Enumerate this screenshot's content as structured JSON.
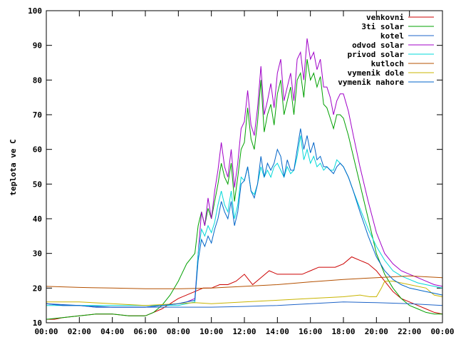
{
  "chart_data": {
    "type": "line",
    "title": "",
    "xlabel": "",
    "ylabel": "teplota ve C",
    "xlim": [
      0,
      24
    ],
    "ylim": [
      10,
      100
    ],
    "yticks": [
      10,
      20,
      30,
      40,
      50,
      60,
      70,
      80,
      90,
      100
    ],
    "xtick_labels": [
      "00:00",
      "02:00",
      "04:00",
      "06:00",
      "08:00",
      "10:00",
      "12:00",
      "14:00",
      "16:00",
      "18:00",
      "20:00",
      "22:00",
      "00:00"
    ],
    "grid": false,
    "legend_position": "top-right",
    "series": [
      {
        "name": "venkovni",
        "color": "#cc0000",
        "x": [
          0,
          0.5,
          1,
          2,
          3,
          4,
          5,
          6,
          7,
          8,
          8.5,
          9,
          9.5,
          10,
          10.5,
          11,
          11.5,
          12,
          12.5,
          13,
          13.5,
          14,
          14.5,
          15,
          15.5,
          16,
          16.5,
          17,
          17.5,
          18,
          18.5,
          19,
          19.5,
          20,
          20.5,
          21,
          21.5,
          22,
          22.5,
          23,
          23.5,
          24
        ],
        "y": [
          11,
          11,
          11.5,
          12,
          12.5,
          12.5,
          12,
          12,
          14,
          17,
          18,
          19,
          20,
          20,
          21,
          21,
          22,
          24,
          21,
          23,
          25,
          24,
          24,
          24,
          24,
          25,
          26,
          26,
          26,
          27,
          29,
          28,
          27,
          25,
          22,
          19,
          17,
          16,
          15,
          14,
          13,
          12.5
        ]
      },
      {
        "name": "3ti solar",
        "color": "#00a000",
        "x": [
          0,
          1,
          2,
          3,
          4,
          5,
          6,
          6.5,
          7,
          7.5,
          8,
          8.5,
          9,
          9.2,
          9.4,
          9.6,
          9.8,
          10,
          10.2,
          10.4,
          10.6,
          10.8,
          11,
          11.2,
          11.4,
          11.6,
          11.8,
          12,
          12.2,
          12.4,
          12.6,
          12.8,
          13,
          13.2,
          13.4,
          13.6,
          13.8,
          14,
          14.2,
          14.4,
          14.6,
          14.8,
          15,
          15.2,
          15.4,
          15.6,
          15.8,
          16,
          16.2,
          16.4,
          16.6,
          16.8,
          17,
          17.2,
          17.4,
          17.6,
          17.8,
          18,
          18.3,
          18.6,
          19,
          19.5,
          20,
          20.5,
          21,
          21.5,
          22,
          22.5,
          23,
          23.5,
          24
        ],
        "y": [
          11,
          11.5,
          12,
          12.5,
          12.5,
          12,
          12,
          13,
          15,
          18,
          22,
          27,
          30,
          38,
          42,
          38,
          43,
          40,
          45,
          50,
          56,
          52,
          50,
          56,
          45,
          52,
          60,
          62,
          72,
          63,
          60,
          68,
          80,
          65,
          70,
          73,
          67,
          76,
          80,
          70,
          74,
          78,
          70,
          80,
          82,
          75,
          86,
          80,
          82,
          78,
          81,
          73,
          72,
          69,
          66,
          70,
          70,
          69,
          64,
          58,
          50,
          40,
          30,
          24,
          20,
          17,
          15,
          14,
          13,
          12.5,
          12.5
        ]
      },
      {
        "name": "kotel",
        "color": "#1e64c8",
        "x": [
          0,
          2,
          4,
          6,
          8,
          10,
          12,
          14,
          16,
          18,
          20,
          22,
          24
        ],
        "y": [
          15.5,
          15,
          14.5,
          14.5,
          14.5,
          14.5,
          14.7,
          15,
          15.5,
          16,
          15.8,
          15.5,
          15
        ]
      },
      {
        "name": "odvod solar",
        "color": "#a000c8",
        "x": [
          0,
          1,
          2,
          3,
          4,
          5,
          6,
          7,
          8,
          8.5,
          9,
          9.2,
          9.4,
          9.6,
          9.8,
          10,
          10.2,
          10.4,
          10.6,
          10.8,
          11,
          11.2,
          11.4,
          11.6,
          11.8,
          12,
          12.2,
          12.4,
          12.6,
          12.8,
          13,
          13.2,
          13.4,
          13.6,
          13.8,
          14,
          14.2,
          14.4,
          14.6,
          14.8,
          15,
          15.2,
          15.4,
          15.6,
          15.8,
          16,
          16.2,
          16.4,
          16.6,
          16.8,
          17,
          17.2,
          17.4,
          17.6,
          17.8,
          18,
          18.3,
          18.6,
          19,
          19.5,
          20,
          20.5,
          21,
          21.5,
          22,
          22.5,
          23,
          23.5,
          24
        ],
        "y": [
          15.5,
          15,
          15,
          14.5,
          14.5,
          14.5,
          14.5,
          15,
          15.5,
          16,
          17,
          30,
          42,
          38,
          46,
          40,
          48,
          54,
          62,
          55,
          52,
          60,
          49,
          56,
          66,
          68,
          77,
          67,
          64,
          72,
          84,
          70,
          74,
          79,
          72,
          82,
          86,
          74,
          78,
          82,
          74,
          86,
          88,
          80,
          92,
          86,
          88,
          83,
          86,
          78,
          78,
          75,
          70,
          74,
          76,
          76,
          71,
          64,
          55,
          45,
          36,
          30,
          27,
          25,
          24,
          23,
          22,
          21,
          20.5
        ]
      },
      {
        "name": "privod solar",
        "color": "#00d8d8",
        "x": [
          0,
          2,
          4,
          6,
          8,
          8.5,
          9,
          9.2,
          9.4,
          9.6,
          9.8,
          10,
          10.2,
          10.4,
          10.6,
          10.8,
          11,
          11.2,
          11.4,
          11.6,
          11.8,
          12,
          12.2,
          12.4,
          12.6,
          12.8,
          13,
          13.2,
          13.4,
          13.6,
          13.8,
          14,
          14.2,
          14.4,
          14.6,
          14.8,
          15,
          15.2,
          15.4,
          15.6,
          15.8,
          16,
          16.2,
          16.4,
          16.6,
          16.8,
          17,
          17.2,
          17.4,
          17.6,
          17.8,
          18,
          18.3,
          18.6,
          19,
          19.5,
          20,
          20.5,
          21,
          21.5,
          22,
          22.5,
          23,
          23.5,
          24
        ],
        "y": [
          15,
          15,
          15,
          15,
          15,
          15.5,
          16,
          30,
          37,
          35,
          38,
          36,
          39,
          44,
          48,
          44,
          42,
          48,
          40,
          44,
          52,
          51,
          55,
          48,
          47,
          50,
          55,
          52,
          54,
          52,
          55,
          56,
          54,
          52,
          55,
          53,
          54,
          58,
          64,
          57,
          60,
          56,
          58,
          55,
          56,
          54,
          55,
          54,
          54,
          57,
          56,
          55,
          52,
          48,
          43,
          37,
          32,
          28,
          25,
          23.5,
          22.5,
          21.5,
          21,
          20.5,
          20
        ]
      },
      {
        "name": "kutloch",
        "color": "#b45000",
        "x": [
          0,
          2,
          4,
          6,
          8,
          10,
          12,
          14,
          16,
          18,
          20,
          22,
          24
        ],
        "y": [
          20.5,
          20.2,
          20,
          19.8,
          19.8,
          20,
          20.5,
          21,
          21.8,
          22.5,
          23,
          23.5,
          23
        ]
      },
      {
        "name": "vymenik dole",
        "color": "#c8b400",
        "x": [
          0,
          2,
          4,
          6,
          8,
          9,
          10,
          12,
          14,
          16,
          18,
          19,
          19.6,
          20,
          20.3,
          20.5,
          21,
          22,
          23,
          23.5,
          24
        ],
        "y": [
          16,
          16,
          15.5,
          15,
          15.5,
          15.8,
          15.5,
          16,
          16.5,
          17,
          17.5,
          18,
          17.5,
          17.5,
          20,
          22,
          22,
          21,
          20,
          18,
          17.5
        ]
      },
      {
        "name": "vymenik nahore",
        "color": "#0064c8",
        "x": [
          0,
          1,
          2,
          3,
          4,
          5,
          6,
          7,
          8,
          8.5,
          9,
          9.2,
          9.4,
          9.6,
          9.8,
          10,
          10.2,
          10.4,
          10.6,
          10.8,
          11,
          11.2,
          11.4,
          11.6,
          11.8,
          12,
          12.2,
          12.4,
          12.6,
          12.8,
          13,
          13.2,
          13.4,
          13.6,
          13.8,
          14,
          14.2,
          14.4,
          14.6,
          14.8,
          15,
          15.2,
          15.4,
          15.6,
          15.8,
          16,
          16.2,
          16.4,
          16.6,
          16.8,
          17,
          17.2,
          17.4,
          17.6,
          17.8,
          18,
          18.3,
          18.6,
          19,
          19.5,
          20,
          20.5,
          21,
          21.5,
          22,
          22.5,
          23,
          23.5,
          24
        ],
        "y": [
          15.5,
          15,
          15,
          14.5,
          14.5,
          14.5,
          14.5,
          15,
          15.5,
          16,
          16.5,
          28,
          34,
          32,
          35,
          33,
          37,
          40,
          45,
          42,
          40,
          45,
          38,
          42,
          50,
          51,
          55,
          48,
          46,
          50,
          58,
          52,
          56,
          54,
          56,
          60,
          58,
          52,
          57,
          54,
          54,
          60,
          66,
          60,
          64,
          59,
          62,
          57,
          58,
          55,
          55,
          54,
          53,
          55,
          56,
          55,
          52,
          48,
          42,
          35,
          29,
          25,
          22.5,
          21,
          20,
          19.5,
          19,
          18.5,
          18
        ]
      }
    ]
  }
}
